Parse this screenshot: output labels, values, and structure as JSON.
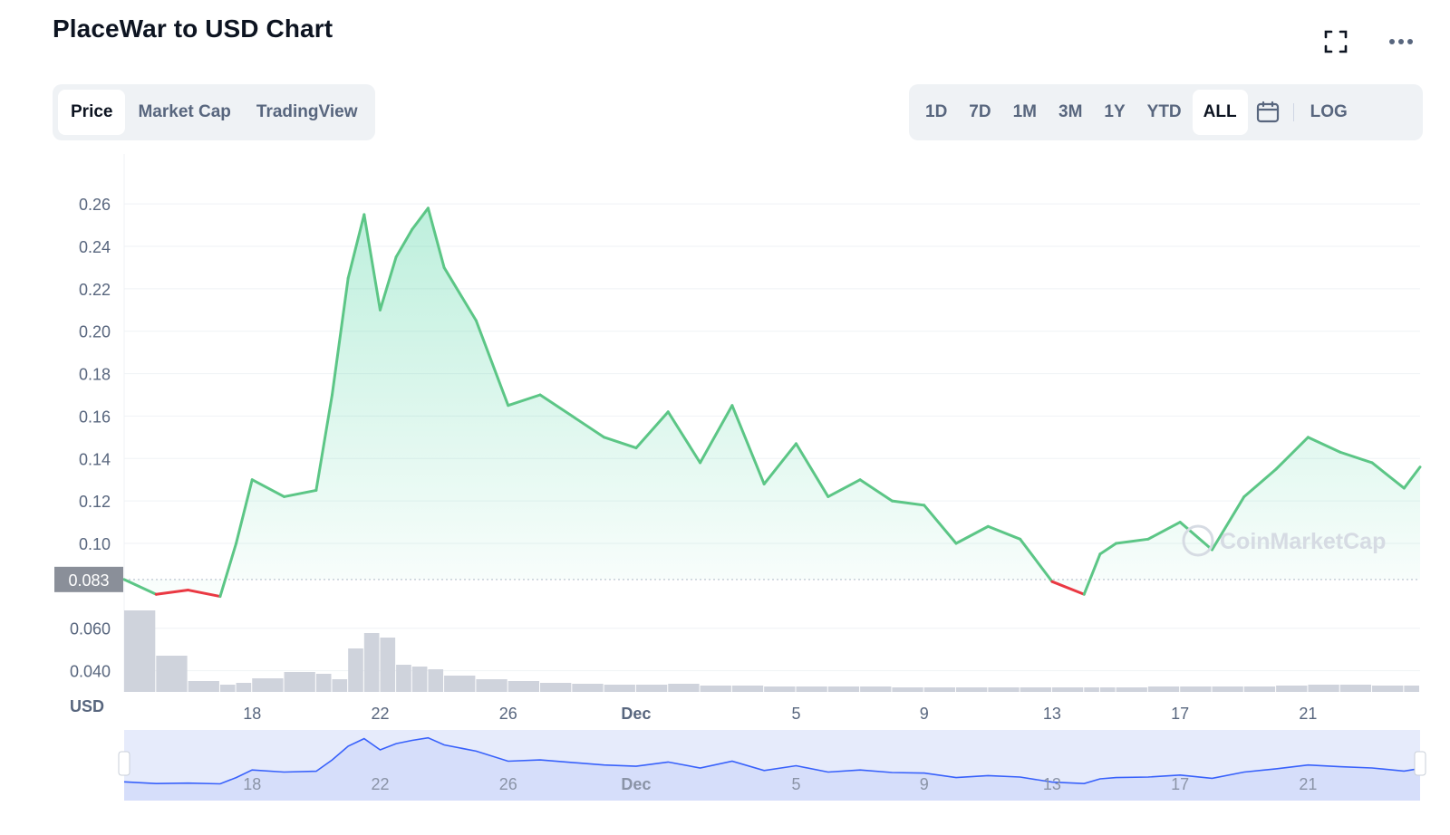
{
  "header": {
    "title": "PlaceWar to USD Chart",
    "fullscreen_icon": "fullscreen-icon",
    "more_icon": "more-horizontal-icon"
  },
  "tabs": [
    {
      "label": "Price",
      "active": true
    },
    {
      "label": "Market Cap",
      "active": false
    },
    {
      "label": "TradingView",
      "active": false
    }
  ],
  "ranges": [
    {
      "label": "1D",
      "active": false
    },
    {
      "label": "7D",
      "active": false
    },
    {
      "label": "1M",
      "active": false
    },
    {
      "label": "3M",
      "active": false
    },
    {
      "label": "1Y",
      "active": false
    },
    {
      "label": "YTD",
      "active": false
    },
    {
      "label": "ALL",
      "active": true
    }
  ],
  "calendar_icon": "calendar-icon",
  "log_label": "LOG",
  "colors": {
    "up": "#16c784",
    "up_line": "#5cc686",
    "down": "#ea3943",
    "baseline_tag": "#8a8f99",
    "volume": "#cfd3dc",
    "navigator_fill": "#e6ebfb",
    "navigator_line": "#3861fb",
    "grid": "#eff2f5",
    "axis_text": "#58667e"
  },
  "chart_data": {
    "type": "line",
    "currency_label": "USD",
    "baseline_value": 0.083,
    "baseline_label": "0.083",
    "watermark": "CoinMarketCap",
    "y_ticks": [
      "0.26",
      "0.24",
      "0.22",
      "0.20",
      "0.18",
      "0.16",
      "0.14",
      "0.12",
      "0.10",
      "0.060",
      "0.040"
    ],
    "x_ticks": [
      "18",
      "22",
      "26",
      "Dec",
      "5",
      "9",
      "13",
      "17",
      "21"
    ],
    "x": [
      14,
      15,
      16,
      17,
      17.5,
      18,
      19,
      20,
      20.5,
      21,
      21.5,
      22,
      22.5,
      23,
      23.5,
      24,
      25,
      26,
      27,
      28,
      29,
      30,
      31,
      32,
      33,
      34,
      35,
      36,
      37,
      38,
      39,
      40,
      41,
      42,
      43,
      44,
      44.5,
      45,
      46,
      47,
      48,
      49,
      50,
      51,
      52,
      53,
      54,
      54.5
    ],
    "price": [
      0.083,
      0.076,
      0.078,
      0.075,
      0.1,
      0.13,
      0.122,
      0.125,
      0.17,
      0.225,
      0.255,
      0.21,
      0.235,
      0.248,
      0.258,
      0.23,
      0.205,
      0.165,
      0.17,
      0.16,
      0.15,
      0.145,
      0.162,
      0.138,
      0.165,
      0.128,
      0.147,
      0.122,
      0.13,
      0.12,
      0.118,
      0.1,
      0.108,
      0.102,
      0.082,
      0.076,
      0.095,
      0.1,
      0.102,
      0.11,
      0.097,
      0.122,
      0.135,
      0.15,
      0.143,
      0.138,
      0.126,
      0.136
    ],
    "volume": [
      90,
      40,
      12,
      8,
      10,
      15,
      22,
      20,
      14,
      48,
      65,
      60,
      30,
      28,
      25,
      18,
      14,
      12,
      10,
      9,
      8,
      8,
      9,
      7,
      7,
      6,
      6,
      6,
      6,
      5,
      5,
      5,
      5,
      5,
      5,
      5,
      5,
      5,
      6,
      6,
      6,
      6,
      7,
      8,
      8,
      7,
      7,
      7
    ],
    "volume_unit": "relative",
    "ylim": [
      0.03,
      0.275
    ],
    "xlim": [
      14,
      54.5
    ],
    "x_tick_positions": [
      18,
      22,
      26,
      30,
      35,
      39,
      43,
      47,
      51
    ]
  }
}
